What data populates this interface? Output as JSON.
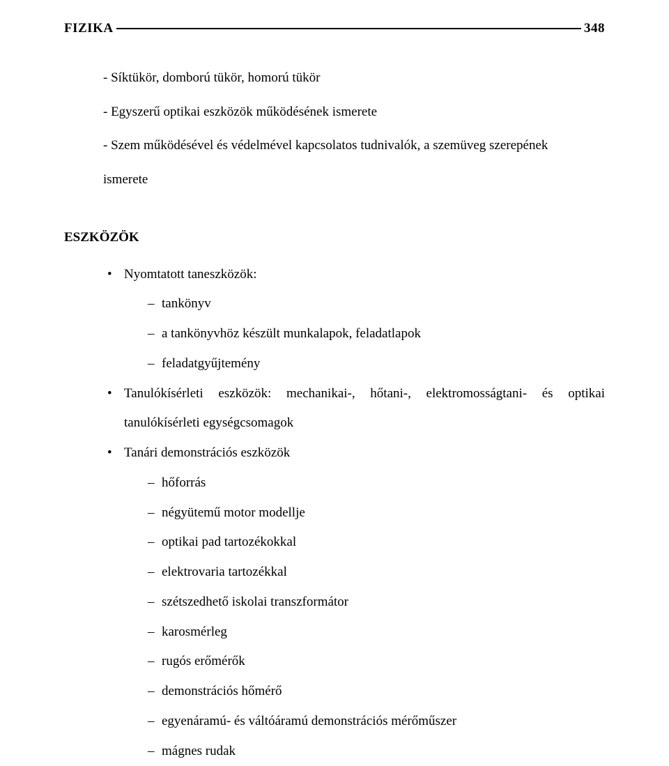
{
  "header": {
    "title": "FIZIKA",
    "page_number": "348"
  },
  "intro_items": [
    "- Síktükör, domború tükör, homorú tükör",
    "- Egyszerű optikai eszközök működésének ismerete",
    "- Szem működésével és védelmével kapcsolatos tudnivalók, a szemüveg szerepének"
  ],
  "intro_tail": "ismerete",
  "section_heading": "ESZKÖZÖK",
  "bullets": [
    {
      "label": "Nyomtatott taneszközök:",
      "children": [
        "tankönyv",
        "a tankönyvhöz készült munkalapok, feladatlapok",
        "feladatgyűjtemény"
      ]
    },
    {
      "label": "Tanulókísérleti eszközök: mechanikai-, hőtani-, elektromosságtani- és optikai tanulókísérleti egységcsomagok",
      "children": []
    },
    {
      "label": "Tanári demonstrációs eszközök",
      "children": [
        "hőforrás",
        "négyütemű motor modellje",
        "optikai pad tartozékokkal",
        "elektrovaria tartozékkal",
        "szétszedhető iskolai transzformátor",
        "karosmérleg",
        "rugós erőmérők",
        "demonstrációs hőmérő",
        "egyenáramú- és váltóáramú demonstrációs mérőműszer",
        "mágnes rudak"
      ]
    }
  ]
}
